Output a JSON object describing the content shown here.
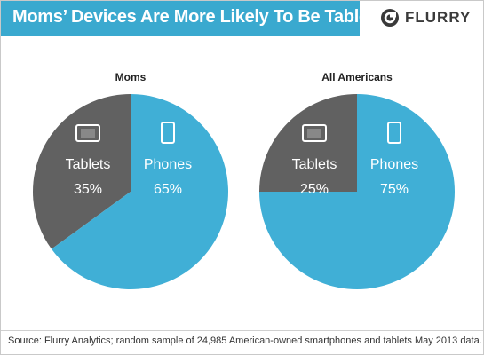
{
  "header": {
    "title": "Moms’ Devices Are More Likely To Be Tablets",
    "logo_text": "FLURRY"
  },
  "colors": {
    "header": "#3aa9cf",
    "phones": "#40afd6",
    "tablets": "#616161",
    "text_dark": "#222222"
  },
  "icons": {
    "tablets": "tablet-icon",
    "phones": "phone-icon"
  },
  "chart_data": [
    {
      "type": "pie",
      "title": "Moms",
      "labels": [
        "Tablets",
        "Phones"
      ],
      "values": [
        35,
        65
      ],
      "value_labels": [
        "35%",
        "65%"
      ],
      "colors": [
        "#616161",
        "#40afd6"
      ]
    },
    {
      "type": "pie",
      "title": "All Americans",
      "labels": [
        "Tablets",
        "Phones"
      ],
      "values": [
        25,
        75
      ],
      "value_labels": [
        "25%",
        "75%"
      ],
      "colors": [
        "#616161",
        "#40afd6"
      ]
    }
  ],
  "footer": {
    "source": "Source: Flurry Analytics; random sample of 24,985 American-owned smartphones and tablets May 2013 data."
  }
}
